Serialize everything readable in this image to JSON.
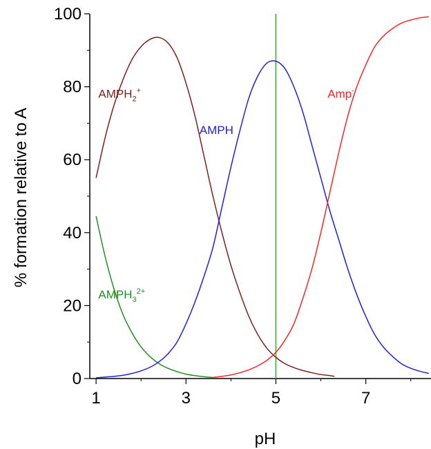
{
  "chart_data": {
    "type": "line",
    "xlabel": "pH",
    "ylabel": "% formation relative to A",
    "xlim": [
      0.86,
      8.45
    ],
    "ylim": [
      0,
      100
    ],
    "xticks": [
      1,
      3,
      5,
      7
    ],
    "xminor": [
      2,
      4,
      6,
      8
    ],
    "yticks": [
      0,
      20,
      40,
      60,
      80,
      100
    ],
    "yminor": [
      10,
      30,
      50,
      70,
      90
    ],
    "grid": false,
    "legend": "none",
    "vline": {
      "x": 5,
      "color": "#2eb82e"
    },
    "series": [
      {
        "name": "AMPH3 2+",
        "label_main": "AMPH",
        "label_sub": "3",
        "label_sup": "2+",
        "label_pos": [
          1.05,
          22
        ],
        "color": "#1f8f1f",
        "x": [
          1.0,
          1.2,
          1.4,
          1.6,
          1.8,
          2.0,
          2.2,
          2.4,
          2.6,
          2.8,
          3.0,
          3.2,
          3.4,
          3.6
        ],
        "y": [
          44.5,
          33.5,
          24.5,
          17.5,
          12.5,
          8.7,
          6.0,
          4.1,
          2.8,
          1.9,
          1.2,
          0.8,
          0.5,
          0.3
        ]
      },
      {
        "name": "AMPH2 +",
        "label_main": "AMPH",
        "label_sub": "2",
        "label_sup": "+",
        "label_pos": [
          1.05,
          77
        ],
        "color": "#7b1e1e",
        "x": [
          1.0,
          1.2,
          1.4,
          1.6,
          1.8,
          2.0,
          2.2,
          2.4,
          2.6,
          2.8,
          3.0,
          3.2,
          3.4,
          3.6,
          3.8,
          4.0,
          4.2,
          4.4,
          4.6,
          4.8,
          5.0,
          5.2,
          5.4,
          5.6,
          5.8,
          6.0,
          6.2,
          6.3
        ],
        "y": [
          55,
          66,
          75,
          82,
          87.5,
          91,
          93,
          93.5,
          92,
          88,
          81,
          72,
          61,
          50,
          40,
          31,
          23.5,
          17,
          12,
          8.3,
          5.8,
          4.1,
          3.0,
          2.2,
          1.6,
          1.1,
          0.8,
          0.6
        ]
      },
      {
        "name": "AMPH",
        "label_main": "AMPH",
        "label_sub": "",
        "label_sup": "",
        "label_pos": [
          3.3,
          67
        ],
        "color": "#1f1fe0",
        "x": [
          1.0,
          1.2,
          1.4,
          1.6,
          1.8,
          2.0,
          2.2,
          2.4,
          2.6,
          2.8,
          3.0,
          3.2,
          3.4,
          3.6,
          3.8,
          4.0,
          4.2,
          4.4,
          4.6,
          4.8,
          5.0,
          5.2,
          5.4,
          5.6,
          5.8,
          6.0,
          6.2,
          6.4,
          6.6,
          6.8,
          7.0,
          7.2,
          7.4,
          7.6,
          7.8,
          8.0,
          8.2,
          8.4
        ],
        "y": [
          0.2,
          0.4,
          0.6,
          0.9,
          1.4,
          2.1,
          3.1,
          4.6,
          6.8,
          10,
          15,
          21,
          28,
          36,
          47,
          58,
          68,
          77,
          83,
          86.5,
          87,
          85,
          80,
          73,
          64,
          55,
          46,
          38,
          30,
          23,
          17,
          12,
          8.5,
          6,
          4,
          2.8,
          2.0,
          1.4
        ]
      },
      {
        "name": "Amp -",
        "label_main": "Amp",
        "label_sub": "",
        "label_sup": "-",
        "label_pos": [
          6.15,
          77
        ],
        "color": "#ff2222",
        "x": [
          3.6,
          3.8,
          4.0,
          4.2,
          4.4,
          4.6,
          4.8,
          5.0,
          5.2,
          5.4,
          5.6,
          5.8,
          6.0,
          6.2,
          6.4,
          6.6,
          6.8,
          7.0,
          7.2,
          7.4,
          7.6,
          7.8,
          8.0,
          8.2,
          8.4
        ],
        "y": [
          0.3,
          0.6,
          1.0,
          1.6,
          2.4,
          3.5,
          5.0,
          7.2,
          10.5,
          15,
          22,
          30,
          40,
          51,
          62,
          72,
          80,
          86,
          91,
          94,
          96,
          97.5,
          98.3,
          98.9,
          99.2
        ]
      }
    ]
  }
}
